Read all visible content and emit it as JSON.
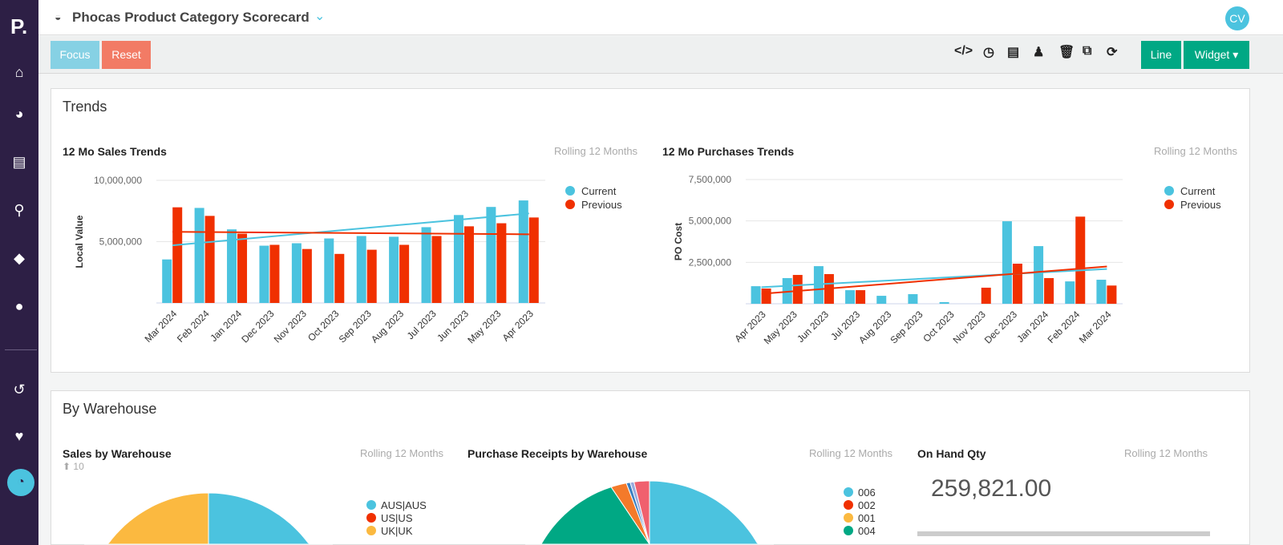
{
  "app": {
    "logo": "P.",
    "title": "Phocas Product Category Scorecard",
    "user_initials": "CV"
  },
  "sidebar": {
    "items": [
      {
        "icon": "home-icon"
      },
      {
        "icon": "pie-chart-icon"
      },
      {
        "icon": "billing-icon"
      },
      {
        "icon": "search-analytics-icon"
      },
      {
        "icon": "tag-icon"
      },
      {
        "icon": "user-icon"
      },
      {
        "icon": "history-icon"
      },
      {
        "icon": "heart-icon"
      },
      {
        "icon": "dashboard-icon"
      }
    ]
  },
  "toolbar": {
    "focus": "Focus",
    "reset": "Reset",
    "line": "Line",
    "widget": "Widget",
    "icons": [
      "code-icon",
      "clock-icon",
      "print-icon",
      "users-icon",
      "trash-icon",
      "copy-icon",
      "refresh-icon"
    ]
  },
  "colors": {
    "current": "#4bc3df",
    "previous": "#f03000",
    "accent": "#00a884",
    "sidebar": "#2d1f45"
  },
  "trends": {
    "title": "Trends"
  },
  "warehouse": {
    "title": "By Warehouse",
    "sales_title": "Sales by Warehouse",
    "sales_badge": "10",
    "purch_title": "Purchase Receipts by Warehouse",
    "onhand_title": "On Hand Qty",
    "onhand_value": "259,821.00",
    "period": "Rolling 12 Months"
  },
  "chart_data": [
    {
      "type": "bar",
      "title": "12 Mo Sales Trends",
      "subtitle": "Rolling 12 Months",
      "ylabel": "Local Value",
      "ylim": [
        0,
        10000000
      ],
      "yticks": [
        "5,000,000",
        "10,000,000"
      ],
      "ytick_values": [
        5000000,
        10000000
      ],
      "categories": [
        "Mar 2024",
        "Feb 2024",
        "Jan 2024",
        "Dec 2023",
        "Nov 2023",
        "Oct 2023",
        "Sep 2023",
        "Aug 2023",
        "Jul 2023",
        "Jun 2023",
        "May 2023",
        "Apr 2023"
      ],
      "series": [
        {
          "name": "Current",
          "values": [
            3550000,
            7750000,
            6000000,
            4670000,
            4870000,
            5260000,
            5460000,
            5400000,
            6180000,
            7170000,
            7830000,
            8360000
          ],
          "trend": [
            4700000,
            7300000
          ]
        },
        {
          "name": "Previous",
          "values": [
            7800000,
            7100000,
            5650000,
            4740000,
            4400000,
            4000000,
            4340000,
            4740000,
            5460000,
            6250000,
            6500000,
            6970000
          ],
          "trend": [
            5800000,
            5600000
          ]
        }
      ],
      "legend": "top-right",
      "grid": true
    },
    {
      "type": "bar",
      "title": "12 Mo Purchases Trends",
      "subtitle": "Rolling 12 Months",
      "ylabel": "PO Cost",
      "ylim": [
        0,
        7500000
      ],
      "yticks": [
        "2,500,000",
        "5,000,000",
        "7,500,000"
      ],
      "ytick_values": [
        2500000,
        5000000,
        7500000
      ],
      "categories": [
        "Apr 2023",
        "May 2023",
        "Jun 2023",
        "Jul 2023",
        "Aug 2023",
        "Sep 2023",
        "Oct 2023",
        "Nov 2023",
        "Dec 2023",
        "Jan 2024",
        "Feb 2024",
        "Mar 2024"
      ],
      "series": [
        {
          "name": "Current",
          "values": [
            1060000,
            1550000,
            2270000,
            820000,
            480000,
            580000,
            100000,
            0,
            4980000,
            3480000,
            1350000,
            1450000
          ],
          "trend": [
            1000000,
            2100000
          ]
        },
        {
          "name": "Previous",
          "values": [
            920000,
            1740000,
            1790000,
            820000,
            0,
            0,
            0,
            970000,
            2420000,
            1550000,
            5260000,
            1100000
          ],
          "trend": [
            600000,
            2250000
          ]
        }
      ],
      "legend": "top-right",
      "grid": true
    },
    {
      "type": "pie",
      "title": "Sales by Warehouse",
      "slices": [
        {
          "name": "AUS|AUS",
          "value": 50,
          "color": "#4bc3df"
        },
        {
          "name": "US|US",
          "value": 15,
          "color": "#f03000"
        },
        {
          "name": "UK|UK",
          "value": 35,
          "color": "#fbb940"
        }
      ]
    },
    {
      "type": "pie",
      "title": "Purchase Receipts by Warehouse",
      "slices": [
        {
          "name": "006",
          "value": 45,
          "color": "#4bc3df"
        },
        {
          "name": "002",
          "value": 15,
          "color": "#f03000"
        },
        {
          "name": "001",
          "value": 12,
          "color": "#fbb940"
        },
        {
          "name": "004",
          "value": 23,
          "color": "#00a884"
        },
        {
          "value": 2,
          "color": "#f47a2a"
        },
        {
          "value": 0.5,
          "color": "#3a7fc1"
        },
        {
          "value": 0.5,
          "color": "#9ad"
        },
        {
          "value": 2,
          "color": "#f0606e"
        }
      ]
    }
  ]
}
